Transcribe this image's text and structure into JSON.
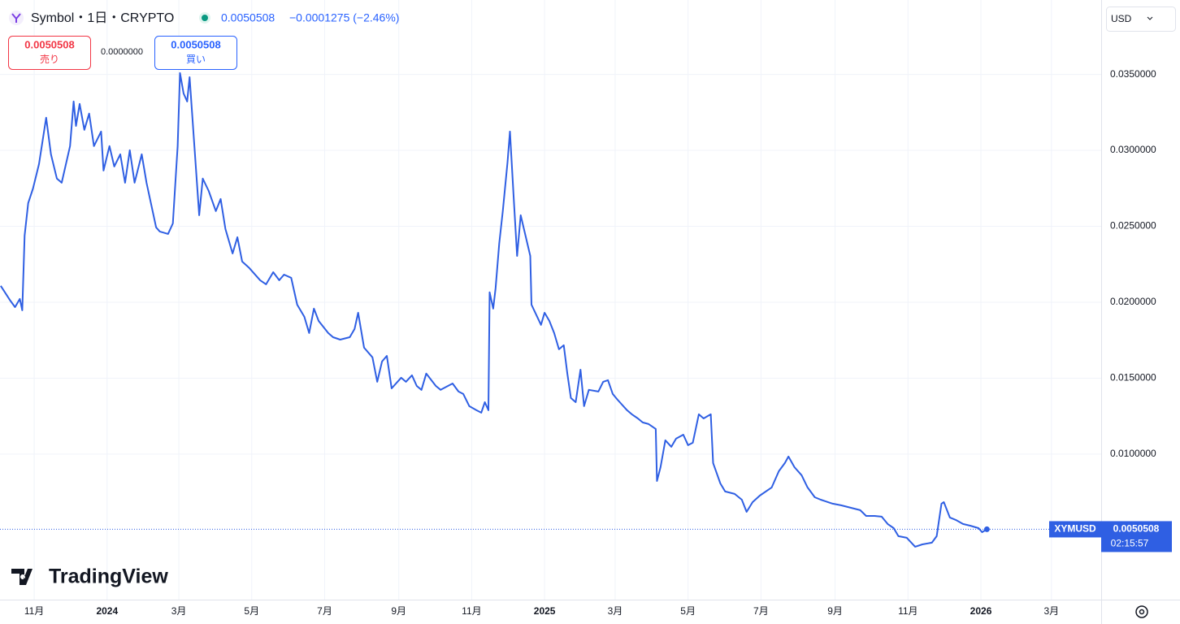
{
  "chart_data": {
    "type": "line",
    "header": {
      "symbol": "Symbol・1日・CRYPTO",
      "change": "−0.0001275 (−2.46%)"
    },
    "trade": {
      "sell": "売り",
      "spread": "0.0000000",
      "buy": "買い"
    },
    "currency": "USD",
    "countdown": "02:15:57",
    "logo": "TradingView",
    "series": [
      {
        "name": "XYMUSD",
        "color": "#2f5fe3",
        "x": [
          -28,
          -20,
          -16,
          -12,
          -10,
          -8,
          -5,
          -1,
          4,
          10,
          14,
          19,
          23,
          30,
          33,
          35,
          38,
          42,
          46,
          50,
          56,
          58,
          63,
          67,
          72,
          76,
          80,
          84,
          90,
          94,
          102,
          105,
          112,
          116,
          120,
          122,
          125,
          128,
          130,
          134,
          138,
          141,
          146,
          152,
          156,
          160,
          166,
          170,
          174,
          180,
          189,
          194,
          200,
          205,
          209,
          215,
          220,
          226,
          230,
          234,
          238,
          246,
          250,
          256,
          264,
          268,
          271,
          276,
          283,
          287,
          291,
          295,
          299,
          307,
          311,
          316,
          320,
          324,
          328,
          336,
          340,
          350,
          355,
          359,
          364,
          370,
          374,
          377,
          380,
          381,
          384,
          386,
          389,
          392,
          396,
          398,
          401,
          404,
          407,
          411,
          415,
          416,
          424,
          427,
          431,
          435,
          439,
          443,
          446,
          449,
          453,
          457,
          460,
          464,
          472,
          476,
          480,
          484,
          488,
          496,
          500,
          505,
          509,
          514,
          520,
          521,
          524,
          528,
          533,
          537,
          543,
          547,
          551,
          556,
          560,
          566,
          568,
          574,
          578,
          586,
          592,
          596,
          601,
          607,
          617,
          623,
          628,
          631,
          636,
          642,
          647,
          653,
          658,
          668,
          675,
          683,
          691,
          696,
          703,
          709,
          714,
          719,
          723,
          730,
          737,
          743,
          751,
          755,
          759,
          761,
          766,
          771,
          777,
          783,
          790,
          793,
          797
        ],
        "values": [
          0.02108,
          0.02011,
          0.01968,
          0.02022,
          0.01947,
          0.02439,
          0.02653,
          0.02749,
          0.0291,
          0.03215,
          0.02974,
          0.02814,
          0.02787,
          0.03028,
          0.03322,
          0.03161,
          0.03306,
          0.03135,
          0.03242,
          0.03028,
          0.03124,
          0.02867,
          0.03028,
          0.02894,
          0.02974,
          0.02787,
          0.03001,
          0.02787,
          0.02974,
          0.02787,
          0.02493,
          0.02466,
          0.0245,
          0.02519,
          0.03028,
          0.03509,
          0.03375,
          0.03322,
          0.03482,
          0.03028,
          0.02573,
          0.02814,
          0.02733,
          0.026,
          0.0268,
          0.02482,
          0.02321,
          0.02428,
          0.02268,
          0.02225,
          0.02145,
          0.02118,
          0.02198,
          0.02145,
          0.02182,
          0.02161,
          0.01984,
          0.01904,
          0.01797,
          0.01958,
          0.01877,
          0.01797,
          0.0177,
          0.01754,
          0.0177,
          0.01824,
          0.01931,
          0.01701,
          0.01637,
          0.01476,
          0.0161,
          0.01647,
          0.01433,
          0.01503,
          0.01476,
          0.01519,
          0.01449,
          0.01423,
          0.0153,
          0.01449,
          0.01423,
          0.01465,
          0.01412,
          0.01396,
          0.01316,
          0.01289,
          0.01273,
          0.01342,
          0.01289,
          0.02065,
          0.01958,
          0.02091,
          0.02386,
          0.026,
          0.02921,
          0.03124,
          0.02707,
          0.02305,
          0.02573,
          0.02439,
          0.02305,
          0.01984,
          0.01851,
          0.01931,
          0.01877,
          0.01797,
          0.0169,
          0.01717,
          0.0153,
          0.01369,
          0.01342,
          0.01556,
          0.01316,
          0.01423,
          0.01412,
          0.01476,
          0.01487,
          0.01396,
          0.01358,
          0.01289,
          0.01262,
          0.01235,
          0.01209,
          0.01198,
          0.01166,
          0.00823,
          0.00914,
          0.01091,
          0.01048,
          0.01102,
          0.01128,
          0.01059,
          0.01075,
          0.01262,
          0.01235,
          0.01262,
          0.00941,
          0.00807,
          0.00754,
          0.00738,
          0.007,
          0.0062,
          0.00684,
          0.00727,
          0.00781,
          0.00888,
          0.00941,
          0.00984,
          0.00914,
          0.00861,
          0.00781,
          0.00716,
          0.007,
          0.00674,
          0.00663,
          0.00647,
          0.00631,
          0.00593,
          0.00593,
          0.00588,
          0.0054,
          0.00513,
          0.0046,
          0.00449,
          0.0039,
          0.00406,
          0.00417,
          0.0046,
          0.00674,
          0.00684,
          0.00583,
          0.00567,
          0.0054,
          0.00529,
          0.00513,
          0.00486,
          0.0050508
        ]
      }
    ],
    "xlim": [
      -28.6,
      892.6
    ],
    "xticks": [
      {
        "value": 0,
        "label": "11月"
      },
      {
        "value": 61,
        "label": "2024"
      },
      {
        "value": 121,
        "label": "3月"
      },
      {
        "value": 182,
        "label": "5月"
      },
      {
        "value": 243,
        "label": "7月"
      },
      {
        "value": 305,
        "label": "9月"
      },
      {
        "value": 366,
        "label": "11月"
      },
      {
        "value": 427,
        "label": "2025"
      },
      {
        "value": 486,
        "label": "3月"
      },
      {
        "value": 547,
        "label": "5月"
      },
      {
        "value": 608,
        "label": "7月"
      },
      {
        "value": 670,
        "label": "9月"
      },
      {
        "value": 731,
        "label": "11月"
      },
      {
        "value": 792,
        "label": "2026"
      },
      {
        "value": 851,
        "label": "3月"
      }
    ],
    "ylim": [
      0.00042,
      0.0399
    ],
    "yticks": [
      {
        "value": 0.01,
        "label": "0.0100000"
      },
      {
        "value": 0.015,
        "label": "0.0150000"
      },
      {
        "value": 0.02,
        "label": "0.0200000"
      },
      {
        "value": 0.025,
        "label": "0.0250000"
      },
      {
        "value": 0.03,
        "label": "0.0300000"
      },
      {
        "value": 0.035,
        "label": "0.0350000"
      }
    ],
    "grid": true
  }
}
